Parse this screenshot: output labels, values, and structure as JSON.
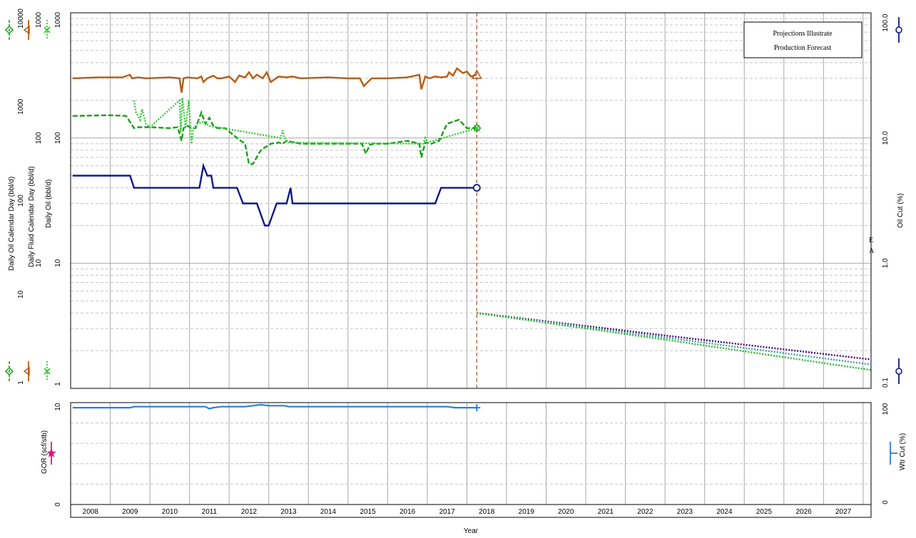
{
  "chart_data": [
    {
      "type": "line",
      "panel": "top",
      "x_axis": {
        "label": "Year",
        "range": [
          2007.5,
          2027.7
        ],
        "tick_labels": [
          "2008",
          "2009",
          "2010",
          "2011",
          "2012",
          "2013",
          "2014",
          "2015",
          "2016",
          "2017",
          "2018",
          "2019",
          "2020",
          "2021",
          "2022",
          "2023",
          "2024",
          "2025",
          "2026",
          "2027"
        ]
      },
      "y_axes": [
        {
          "label": "Daily Oil Calendar Day (bbl/d)",
          "scale": "log",
          "range": [
            1,
            10000
          ],
          "tick_labels": [
            "1",
            "10",
            "100",
            "1000",
            "10000"
          ]
        },
        {
          "label": "Daily Fluid Calendar Day (bbl/d)",
          "scale": "log",
          "range": [
            10,
            1000
          ],
          "tick_labels": [
            "10",
            "100",
            "1000"
          ]
        },
        {
          "label": "Daily Oil (bbl/d)",
          "scale": "log",
          "range": [
            1,
            1000
          ],
          "tick_labels": [
            "1",
            "10",
            "100",
            "1000"
          ]
        },
        {
          "label": "Oil Cut (%)",
          "scale": "log",
          "side": "right",
          "range": [
            0.1,
            100
          ],
          "tick_labels": [
            "0.1",
            "1.0",
            "10.0",
            "100.0"
          ]
        }
      ],
      "grid": true,
      "legend_box": {
        "lines": [
          "Projections Illustrate",
          "Production Forecast"
        ],
        "position": "top-right"
      },
      "forecast_start": 2017.75,
      "forecast_labels": [
        "E",
        "A"
      ],
      "series": [
        {
          "color": "#b85c14",
          "style": "solid",
          "marker": "triangle",
          "x": [
            2007.55,
            2008.2,
            2008.8,
            2009.0,
            2009.05,
            2009.2,
            2009.4,
            2010.0,
            2010.25,
            2010.3,
            2010.35,
            2010.45,
            2010.7,
            2010.8,
            2010.85,
            2010.95,
            2011.1,
            2011.2,
            2011.3,
            2011.5,
            2011.65,
            2011.75,
            2011.9,
            2012.0,
            2012.1,
            2012.2,
            2012.35,
            2012.45,
            2012.55,
            2012.75,
            2012.95,
            2013.1,
            2013.3,
            2014.0,
            2014.5,
            2014.8,
            2014.9,
            2014.95,
            2015.1,
            2015.5,
            2016.0,
            2016.3,
            2016.35,
            2016.45,
            2016.55,
            2016.7,
            2016.85,
            2017.0,
            2017.05,
            2017.15,
            2017.25,
            2017.4,
            2017.5,
            2017.6,
            2017.75
          ],
          "y": [
            300,
            305,
            305,
            320,
            300,
            305,
            300,
            305,
            300,
            230,
            300,
            305,
            300,
            310,
            280,
            300,
            315,
            300,
            300,
            310,
            280,
            315,
            305,
            335,
            300,
            320,
            300,
            335,
            280,
            310,
            305,
            310,
            300,
            305,
            300,
            300,
            260,
            270,
            300,
            300,
            305,
            320,
            245,
            310,
            300,
            310,
            305,
            310,
            335,
            315,
            360,
            330,
            340,
            310,
            320
          ]
        },
        {
          "color": "#19a019",
          "style": "dashed",
          "marker": "diamond",
          "x": [
            2007.55,
            2008.5,
            2008.9,
            2009.1,
            2009.2,
            2009.5,
            2010.0,
            2010.2,
            2010.3,
            2010.35,
            2010.45,
            2010.55,
            2010.65,
            2010.8,
            2010.9,
            2011.0,
            2011.1,
            2011.2,
            2011.4,
            2011.7,
            2011.9,
            2012.0,
            2012.1,
            2012.3,
            2012.55,
            2012.75,
            2012.85,
            2012.95,
            2013.3,
            2014.0,
            2014.5,
            2014.85,
            2014.95,
            2015.05,
            2015.15,
            2015.5,
            2016.0,
            2016.3,
            2016.35,
            2016.45,
            2016.6,
            2016.8,
            2017.0,
            2017.3,
            2017.5,
            2017.75
          ],
          "y": [
            150,
            152,
            150,
            120,
            122,
            122,
            120,
            122,
            95,
            120,
            125,
            120,
            120,
            160,
            130,
            145,
            125,
            120,
            120,
            100,
            90,
            62,
            62,
            80,
            90,
            92,
            90,
            95,
            90,
            90,
            90,
            90,
            75,
            88,
            90,
            90,
            95,
            90,
            70,
            92,
            90,
            95,
            130,
            140,
            120,
            120
          ]
        },
        {
          "color": "#33cc33",
          "style": "dotted",
          "marker": "x",
          "x": [
            2009.1,
            2009.15,
            2009.25,
            2009.3,
            2009.4,
            2009.5,
            2010.25,
            2010.28,
            2010.32,
            2010.4,
            2010.48,
            2010.55,
            2010.6,
            2010.7,
            2010.85,
            2011.0,
            2012.8,
            2012.85,
            2012.9,
            2013.0,
            2016.4,
            2016.45,
            2016.5,
            2017.75
          ],
          "y": [
            200,
            160,
            140,
            170,
            130,
            122,
            200,
            110,
            210,
            120,
            200,
            90,
            120,
            130,
            135,
            125,
            100,
            115,
            100,
            92,
            90,
            100,
            92,
            120
          ]
        },
        {
          "color": "#0d1a8c",
          "style": "solid",
          "marker": "circle",
          "axis": "Oil Cut (%)",
          "x": [
            2007.55,
            2008.6,
            2008.9,
            2009.0,
            2009.1,
            2009.5,
            2010.0,
            2010.5,
            2010.75,
            2010.85,
            2010.95,
            2011.05,
            2011.1,
            2011.3,
            2011.7,
            2011.85,
            2011.95,
            2012.2,
            2012.4,
            2012.5,
            2012.7,
            2012.95,
            2013.05,
            2013.1,
            2013.5,
            2014.0,
            2015.0,
            2016.0,
            2016.7,
            2016.85,
            2017.2,
            2017.75
          ],
          "y": [
            5.0,
            5.0,
            5.0,
            5.0,
            4.0,
            4.0,
            4.0,
            4.0,
            4.0,
            6.0,
            5.0,
            5.0,
            4.0,
            4.0,
            4.0,
            3.0,
            3.0,
            3.0,
            2.0,
            2.0,
            3.0,
            3.0,
            4.0,
            3.0,
            3.0,
            3.0,
            3.0,
            3.0,
            3.0,
            4.0,
            4.0,
            4.0
          ]
        },
        {
          "color": "#4b0082",
          "style": "dotted",
          "label": "E",
          "x": [
            2017.75,
            2022.7,
            2027.7
          ],
          "y": [
            4.0,
            2.6,
            1.7
          ]
        },
        {
          "color": "#3aa3a3",
          "style": "dotted",
          "x": [
            2017.75,
            2022.7,
            2027.7
          ],
          "y": [
            4.0,
            2.5,
            1.55
          ]
        },
        {
          "color": "#2db82d",
          "style": "dotted",
          "label": "A",
          "x": [
            2017.75,
            2022.7,
            2027.7
          ],
          "y": [
            4.0,
            2.4,
            1.4
          ]
        }
      ]
    },
    {
      "type": "line",
      "panel": "bottom",
      "x_axis": {
        "label": "Year",
        "range": [
          2007.5,
          2027.7
        ]
      },
      "y_axes": [
        {
          "label": "GOR (scf/stb)",
          "scale": "linear",
          "range": [
            0,
            10
          ],
          "tick_labels": [
            "0",
            "10"
          ]
        },
        {
          "label": "Wtr Cut (%)",
          "side": "right",
          "scale": "linear",
          "range": [
            0,
            100
          ],
          "tick_labels": [
            "0",
            "100"
          ]
        }
      ],
      "grid": true,
      "series": [
        {
          "color": "#2a7fe0",
          "style": "solid",
          "marker": "plus",
          "axis": "Wtr Cut (%)",
          "x": [
            2007.55,
            2008.5,
            2009.0,
            2009.1,
            2010.0,
            2010.5,
            2010.9,
            2011.0,
            2011.1,
            2011.3,
            2011.6,
            2011.9,
            2012.1,
            2012.3,
            2012.5,
            2012.9,
            2013.0,
            2013.5,
            2014.0,
            2015.0,
            2016.0,
            2017.0,
            2017.2,
            2017.75
          ],
          "y": [
            95,
            95,
            95,
            96,
            96,
            96,
            96,
            94,
            95,
            96,
            96,
            96,
            97,
            98,
            97,
            97,
            96,
            96,
            96,
            96,
            96,
            96,
            95,
            95
          ]
        }
      ],
      "gor_marker": {
        "color": "#e6147a",
        "marker": "star"
      }
    }
  ]
}
